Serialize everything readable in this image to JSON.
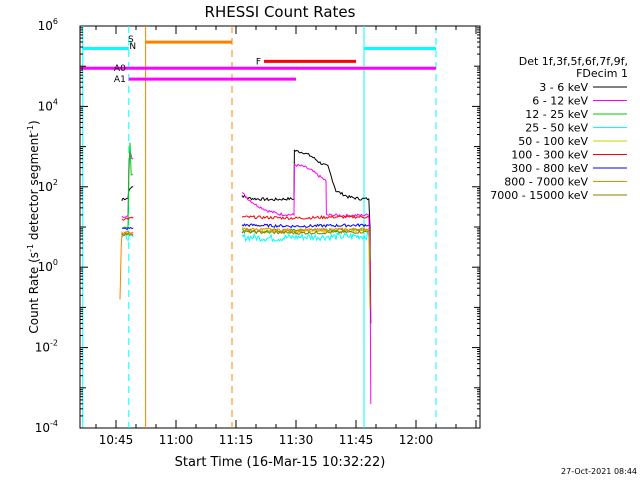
{
  "chart_data": {
    "type": "line",
    "title": "RHESSI Count Rates",
    "xlabel": "Start Time (16-Mar-15 10:32:22)",
    "ylabel_main": "Count Rate (s",
    "ylabel_sup1": "-1",
    "ylabel_mid": " detector segment",
    "ylabel_sup2": "-1",
    "ylabel_end": ")",
    "y_scale": "log",
    "x_unit": "minutes",
    "xlim": [
      636,
      736
    ],
    "ylim_exp": [
      -4,
      6
    ],
    "x_ticks": [
      {
        "value": 645,
        "label": "10:45"
      },
      {
        "value": 660,
        "label": "11:00"
      },
      {
        "value": 675,
        "label": "11:15"
      },
      {
        "value": 690,
        "label": "11:30"
      },
      {
        "value": 705,
        "label": "11:45"
      },
      {
        "value": 720,
        "label": "12:00"
      }
    ],
    "y_ticks": [
      {
        "exp": 6,
        "base": "10",
        "sup": "6"
      },
      {
        "exp": 4,
        "base": "10",
        "sup": "4"
      },
      {
        "exp": 2,
        "base": "10",
        "sup": "2"
      },
      {
        "exp": 0,
        "base": "10",
        "sup": "0"
      },
      {
        "exp": -2,
        "base": "10",
        "sup": "-2"
      },
      {
        "exp": -4,
        "base": "10",
        "sup": "-4"
      }
    ],
    "legend": {
      "title_line1": "Det 1f,3f,5f,6f,7f,9f,",
      "title_line2": "FDecim 1",
      "position": "right"
    },
    "series": [
      {
        "name": "3 - 6 keV",
        "color": "#000000",
        "segments": [
          [
            [
              646.5,
              1.65
            ],
            [
              646.6,
              1.7
            ],
            [
              648,
              1.72
            ],
            [
              648.2,
              1.9
            ],
            [
              648.5,
              1.95
            ],
            [
              649,
              2.0
            ],
            [
              649.3,
              2.0
            ]
          ],
          [
            [
              676.5,
              1.78
            ],
            [
              678,
              1.72
            ],
            [
              680,
              1.7
            ],
            [
              684,
              1.68
            ],
            [
              688,
              1.7
            ],
            [
              689.5,
              1.7
            ],
            [
              689.6,
              2.9
            ],
            [
              692,
              2.85
            ],
            [
              694,
              2.75
            ],
            [
              696,
              2.6
            ],
            [
              698,
              2.5
            ],
            [
              700,
              1.9
            ],
            [
              703,
              1.75
            ],
            [
              706,
              1.7
            ],
            [
              708.2,
              1.7
            ],
            [
              708.5,
              1.0
            ],
            [
              708.7,
              -1.4
            ]
          ]
        ]
      },
      {
        "name": "6 - 12 keV",
        "color": "#ff00ff",
        "segments": [
          [
            [
              646.5,
              1.25
            ],
            [
              648,
              1.3
            ],
            [
              648.2,
              2.5
            ],
            [
              648.5,
              2.9
            ],
            [
              649,
              2.7
            ],
            [
              649.3,
              2.7
            ]
          ],
          [
            [
              676.5,
              1.85
            ],
            [
              678,
              1.7
            ],
            [
              680,
              1.55
            ],
            [
              683,
              1.4
            ],
            [
              686,
              1.32
            ],
            [
              689.5,
              1.3
            ],
            [
              689.6,
              2.55
            ],
            [
              692,
              2.5
            ],
            [
              694,
              2.4
            ],
            [
              696,
              2.25
            ],
            [
              697.5,
              2.15
            ],
            [
              697.6,
              1.3
            ],
            [
              703,
              1.28
            ],
            [
              708.2,
              1.3
            ],
            [
              708.5,
              0.5
            ],
            [
              708.7,
              -3.4
            ]
          ]
        ]
      },
      {
        "name": "12 - 25 keV",
        "color": "#00cc00",
        "segments": [
          [
            [
              646.5,
              1.0
            ],
            [
              648,
              1.0
            ],
            [
              648.2,
              2.2
            ],
            [
              648.5,
              3.1
            ],
            [
              648.8,
              2.3
            ],
            [
              649.3,
              2.3
            ]
          ],
          [
            [
              676.5,
              0.95
            ],
            [
              680,
              0.9
            ],
            [
              690,
              0.92
            ],
            [
              700,
              0.93
            ],
            [
              708.2,
              0.95
            ],
            [
              708.5,
              0.2
            ]
          ]
        ]
      },
      {
        "name": "25 - 50 keV",
        "color": "#00ffff",
        "segments": [
          [
            [
              646.5,
              0.75
            ],
            [
              649.3,
              0.75
            ]
          ],
          [
            [
              676.5,
              0.75
            ],
            [
              685,
              0.72
            ],
            [
              690,
              0.75
            ],
            [
              700,
              0.76
            ],
            [
              708.2,
              0.78
            ]
          ]
        ]
      },
      {
        "name": "50 - 100 keV",
        "color": "#cccc00",
        "segments": [
          [
            [
              646.5,
              0.85
            ],
            [
              649.3,
              0.85
            ]
          ],
          [
            [
              676.5,
              0.9
            ],
            [
              690,
              0.88
            ],
            [
              708.2,
              0.92
            ]
          ]
        ]
      },
      {
        "name": "100 - 300 keV",
        "color": "#ff0000",
        "segments": [
          [
            [
              646.5,
              1.2
            ],
            [
              649.3,
              1.22
            ]
          ],
          [
            [
              676.5,
              1.25
            ],
            [
              690,
              1.22
            ],
            [
              700,
              1.25
            ],
            [
              708.2,
              1.25
            ]
          ]
        ]
      },
      {
        "name": "300 - 800 keV",
        "color": "#0000ff",
        "segments": [
          [
            [
              646.5,
              0.95
            ],
            [
              649.3,
              0.97
            ]
          ],
          [
            [
              676.5,
              1.05
            ],
            [
              690,
              1.02
            ],
            [
              708.2,
              1.05
            ]
          ]
        ]
      },
      {
        "name": "800 - 7000 keV",
        "color": "#ff8000",
        "segments": [
          [
            [
              646.0,
              -0.8
            ],
            [
              646.3,
              0.5
            ],
            [
              646.5,
              0.85
            ],
            [
              649.3,
              0.87
            ]
          ],
          [
            [
              676.5,
              0.95
            ],
            [
              690,
              0.92
            ],
            [
              708.2,
              0.95
            ],
            [
              708.5,
              -1.0
            ]
          ]
        ]
      },
      {
        "name": "7000 - 15000 keV",
        "color": "#808000",
        "segments": [
          [
            [
              646.5,
              0.82
            ],
            [
              649.3,
              0.82
            ]
          ],
          [
            [
              676.5,
              0.88
            ],
            [
              690,
              0.85
            ],
            [
              708.2,
              0.88
            ]
          ]
        ]
      }
    ],
    "vertical_lines": [
      {
        "x": 636.7,
        "color": "#00ffff",
        "dashed": false
      },
      {
        "x": 648.2,
        "color": "#00ffff",
        "dashed": true
      },
      {
        "x": 652.4,
        "color": "#ff8000",
        "dashed": false
      },
      {
        "x": 674.0,
        "color": "#ff8000",
        "dashed": true
      },
      {
        "x": 707.0,
        "color": "#00ffff",
        "dashed": false
      },
      {
        "x": 725.0,
        "color": "#00ffff",
        "dashed": true
      }
    ],
    "flag_bars": [
      {
        "label": "",
        "color": "#00ffff",
        "x0": 636.7,
        "x1": 648.2,
        "y": 5.44
      },
      {
        "label": "",
        "color": "#00ffff",
        "x0": 707.0,
        "x1": 725.0,
        "y": 5.44
      },
      {
        "label": "",
        "color": "#ff8000",
        "x0": 652.4,
        "x1": 674.0,
        "y": 5.6
      },
      {
        "label": "F",
        "color": "#ff0000",
        "x0": 682.0,
        "x1": 705.0,
        "y": 5.12
      },
      {
        "label": "",
        "color": "#ff00ff",
        "x0": 636.3,
        "x1": 648.2,
        "y": 4.95
      },
      {
        "label": "A0",
        "color": "#ff00ff",
        "x0": 648.2,
        "x1": 690.5,
        "y": 4.95
      },
      {
        "label": "A1",
        "color": "#ff00ff",
        "x0": 648.2,
        "x1": 690.0,
        "y": 4.68
      },
      {
        "label": "",
        "color": "#ff00ff",
        "x0": 690.3,
        "x1": 725.0,
        "y": 4.95
      }
    ],
    "flag_labels": [
      {
        "text": "S",
        "color": "#ff8000"
      },
      {
        "text": "N",
        "color": "#00ffff"
      }
    ],
    "timestamp": "27-Oct-2021 08:44"
  }
}
